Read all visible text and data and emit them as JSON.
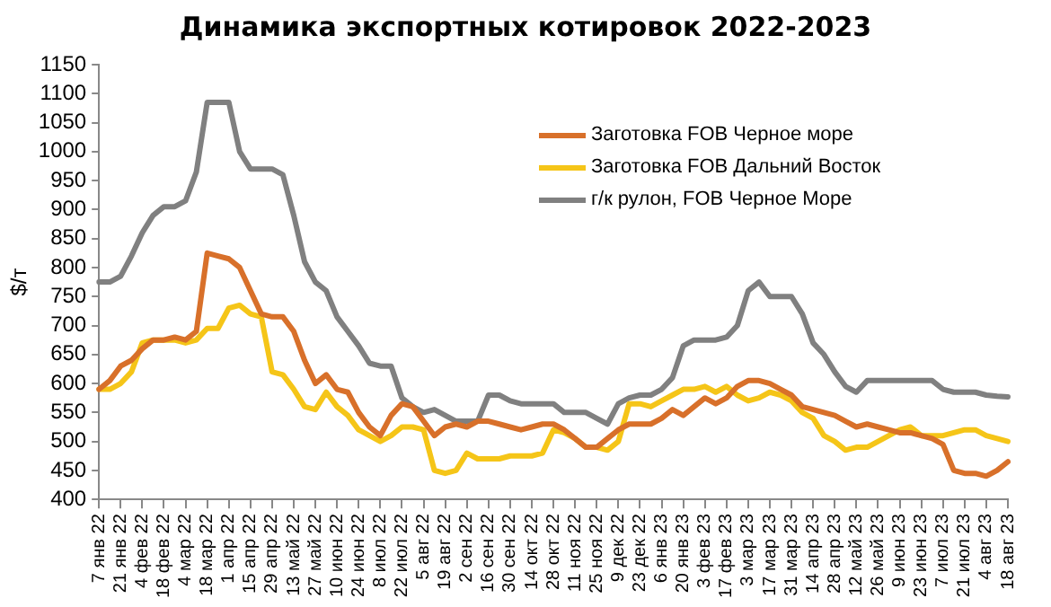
{
  "chart_data": {
    "type": "line",
    "title": "Динамика экспортных котировок 2022-2023",
    "ylabel": "$/т",
    "categories": [
      "7 янв 22",
      null,
      "21 янв 22",
      null,
      "4 фев 22",
      null,
      "18 фев 22",
      null,
      "4 мар 22",
      null,
      "18 мар 22",
      null,
      "1 апр 22",
      null,
      "15 апр 22",
      null,
      "29 апр 22",
      null,
      "13 май 22",
      null,
      "27 май 22",
      null,
      "10 июн 22",
      null,
      "24 июн 22",
      null,
      "8 июл 22",
      null,
      "22 июл 22",
      null,
      "5 авг 22",
      null,
      "19 авг 22",
      null,
      "2 сен 22",
      null,
      "16 сен 22",
      null,
      "30 сен 22",
      null,
      "14 окт 22",
      null,
      "28 окт 22",
      null,
      "11 ноя 22",
      null,
      "25 ноя 22",
      null,
      "9 дек 22",
      null,
      "23 дек 22",
      null,
      "6 янв 23",
      null,
      "20 янв 23",
      null,
      "3 фев 23",
      null,
      "17 фев 23",
      null,
      "3 мар 23",
      null,
      "17 мар 23",
      null,
      "31 мар 23",
      null,
      "14 апр 23",
      null,
      "28 апр 23",
      null,
      "12 май 23",
      null,
      "26 май 23",
      null,
      "9 июн 23",
      null,
      "23 июн 23",
      null,
      "7 июл 23",
      null,
      "21 июл 23",
      null,
      "4 авг 23",
      null,
      "18 авг 23"
    ],
    "series": [
      {
        "name": "Заготовка FOB Черное море",
        "color": "#d8702a",
        "values": [
          590,
          605,
          630,
          640,
          660,
          675,
          675,
          680,
          675,
          690,
          825,
          820,
          815,
          800,
          760,
          720,
          715,
          715,
          690,
          640,
          600,
          615,
          590,
          585,
          550,
          525,
          510,
          545,
          565,
          560,
          535,
          510,
          525,
          530,
          525,
          535,
          535,
          530,
          525,
          520,
          525,
          530,
          530,
          520,
          505,
          490,
          490,
          505,
          520,
          530,
          530,
          530,
          540,
          555,
          545,
          560,
          575,
          565,
          575,
          595,
          605,
          605,
          600,
          590,
          580,
          560,
          555,
          550,
          545,
          535,
          525,
          530,
          525,
          520,
          515,
          515,
          510,
          505,
          495,
          450,
          445,
          445,
          440,
          450,
          465
        ]
      },
      {
        "name": "Заготовка FOB Дальний Восток",
        "color": "#f5c518",
        "values": [
          590,
          590,
          600,
          620,
          670,
          675,
          675,
          675,
          670,
          675,
          695,
          695,
          730,
          735,
          720,
          715,
          620,
          615,
          590,
          560,
          555,
          585,
          560,
          545,
          520,
          510,
          500,
          510,
          525,
          525,
          520,
          450,
          445,
          450,
          480,
          470,
          470,
          470,
          475,
          475,
          475,
          480,
          520,
          515,
          505,
          490,
          490,
          485,
          500,
          565,
          565,
          560,
          570,
          580,
          590,
          590,
          595,
          585,
          595,
          580,
          570,
          575,
          585,
          580,
          570,
          550,
          540,
          510,
          500,
          485,
          490,
          490,
          500,
          510,
          520,
          525,
          510,
          510,
          510,
          515,
          520,
          520,
          510,
          505,
          500
        ]
      },
      {
        "name": "г/к рулон, FOB Черное Море",
        "color": "#808080",
        "values": [
          775,
          775,
          785,
          820,
          860,
          890,
          905,
          905,
          915,
          965,
          1085,
          1085,
          1085,
          1000,
          970,
          970,
          970,
          960,
          890,
          810,
          775,
          760,
          715,
          690,
          665,
          635,
          630,
          630,
          575,
          560,
          550,
          555,
          545,
          535,
          535,
          535,
          580,
          580,
          570,
          565,
          565,
          565,
          565,
          550,
          550,
          550,
          540,
          530,
          565,
          575,
          580,
          580,
          590,
          610,
          665,
          675,
          675,
          675,
          680,
          700,
          760,
          775,
          750,
          750,
          750,
          720,
          670,
          650,
          620,
          595,
          585,
          605,
          605,
          605,
          605,
          605,
          605,
          605,
          590,
          585,
          585,
          585,
          580,
          578,
          577
        ]
      }
    ],
    "ylim": [
      400,
      1150
    ],
    "yticks": [
      400,
      450,
      500,
      550,
      600,
      650,
      700,
      750,
      800,
      850,
      900,
      950,
      1000,
      1050,
      1100,
      1150
    ],
    "grid": false,
    "legend": "top right",
    "marker": "none",
    "line_style": "solid"
  }
}
